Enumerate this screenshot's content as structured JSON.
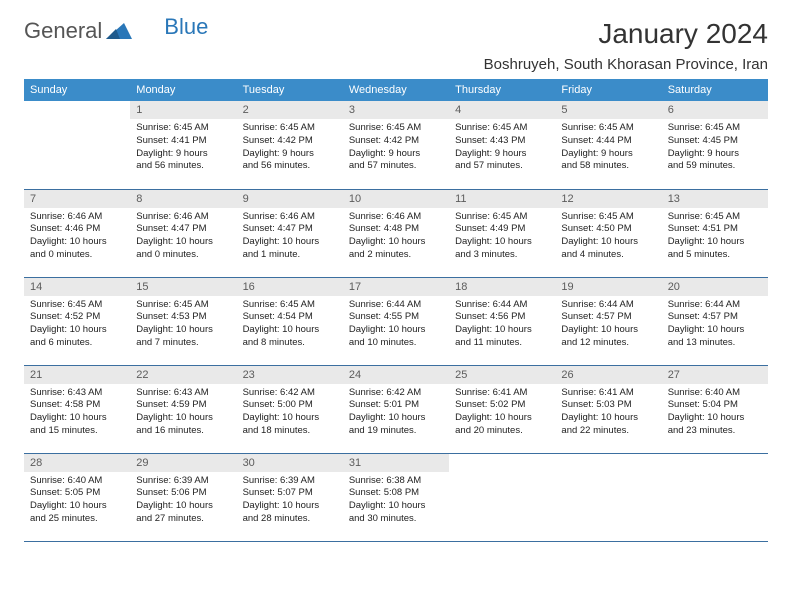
{
  "brand": {
    "name_part1": "General",
    "name_part2": "Blue"
  },
  "title": "January 2024",
  "location": "Boshruyeh, South Khorasan Province, Iran",
  "colors": {
    "header_bg": "#3b8cc9",
    "row_border": "#3b6fa0",
    "daynum_bg": "#e9e9e9",
    "logo_blue": "#2a77b8"
  },
  "weekdays": [
    "Sunday",
    "Monday",
    "Tuesday",
    "Wednesday",
    "Thursday",
    "Friday",
    "Saturday"
  ],
  "weeks": [
    [
      null,
      {
        "n": "1",
        "sr": "Sunrise: 6:45 AM",
        "ss": "Sunset: 4:41 PM",
        "d1": "Daylight: 9 hours",
        "d2": "and 56 minutes."
      },
      {
        "n": "2",
        "sr": "Sunrise: 6:45 AM",
        "ss": "Sunset: 4:42 PM",
        "d1": "Daylight: 9 hours",
        "d2": "and 56 minutes."
      },
      {
        "n": "3",
        "sr": "Sunrise: 6:45 AM",
        "ss": "Sunset: 4:42 PM",
        "d1": "Daylight: 9 hours",
        "d2": "and 57 minutes."
      },
      {
        "n": "4",
        "sr": "Sunrise: 6:45 AM",
        "ss": "Sunset: 4:43 PM",
        "d1": "Daylight: 9 hours",
        "d2": "and 57 minutes."
      },
      {
        "n": "5",
        "sr": "Sunrise: 6:45 AM",
        "ss": "Sunset: 4:44 PM",
        "d1": "Daylight: 9 hours",
        "d2": "and 58 minutes."
      },
      {
        "n": "6",
        "sr": "Sunrise: 6:45 AM",
        "ss": "Sunset: 4:45 PM",
        "d1": "Daylight: 9 hours",
        "d2": "and 59 minutes."
      }
    ],
    [
      {
        "n": "7",
        "sr": "Sunrise: 6:46 AM",
        "ss": "Sunset: 4:46 PM",
        "d1": "Daylight: 10 hours",
        "d2": "and 0 minutes."
      },
      {
        "n": "8",
        "sr": "Sunrise: 6:46 AM",
        "ss": "Sunset: 4:47 PM",
        "d1": "Daylight: 10 hours",
        "d2": "and 0 minutes."
      },
      {
        "n": "9",
        "sr": "Sunrise: 6:46 AM",
        "ss": "Sunset: 4:47 PM",
        "d1": "Daylight: 10 hours",
        "d2": "and 1 minute."
      },
      {
        "n": "10",
        "sr": "Sunrise: 6:46 AM",
        "ss": "Sunset: 4:48 PM",
        "d1": "Daylight: 10 hours",
        "d2": "and 2 minutes."
      },
      {
        "n": "11",
        "sr": "Sunrise: 6:45 AM",
        "ss": "Sunset: 4:49 PM",
        "d1": "Daylight: 10 hours",
        "d2": "and 3 minutes."
      },
      {
        "n": "12",
        "sr": "Sunrise: 6:45 AM",
        "ss": "Sunset: 4:50 PM",
        "d1": "Daylight: 10 hours",
        "d2": "and 4 minutes."
      },
      {
        "n": "13",
        "sr": "Sunrise: 6:45 AM",
        "ss": "Sunset: 4:51 PM",
        "d1": "Daylight: 10 hours",
        "d2": "and 5 minutes."
      }
    ],
    [
      {
        "n": "14",
        "sr": "Sunrise: 6:45 AM",
        "ss": "Sunset: 4:52 PM",
        "d1": "Daylight: 10 hours",
        "d2": "and 6 minutes."
      },
      {
        "n": "15",
        "sr": "Sunrise: 6:45 AM",
        "ss": "Sunset: 4:53 PM",
        "d1": "Daylight: 10 hours",
        "d2": "and 7 minutes."
      },
      {
        "n": "16",
        "sr": "Sunrise: 6:45 AM",
        "ss": "Sunset: 4:54 PM",
        "d1": "Daylight: 10 hours",
        "d2": "and 8 minutes."
      },
      {
        "n": "17",
        "sr": "Sunrise: 6:44 AM",
        "ss": "Sunset: 4:55 PM",
        "d1": "Daylight: 10 hours",
        "d2": "and 10 minutes."
      },
      {
        "n": "18",
        "sr": "Sunrise: 6:44 AM",
        "ss": "Sunset: 4:56 PM",
        "d1": "Daylight: 10 hours",
        "d2": "and 11 minutes."
      },
      {
        "n": "19",
        "sr": "Sunrise: 6:44 AM",
        "ss": "Sunset: 4:57 PM",
        "d1": "Daylight: 10 hours",
        "d2": "and 12 minutes."
      },
      {
        "n": "20",
        "sr": "Sunrise: 6:44 AM",
        "ss": "Sunset: 4:57 PM",
        "d1": "Daylight: 10 hours",
        "d2": "and 13 minutes."
      }
    ],
    [
      {
        "n": "21",
        "sr": "Sunrise: 6:43 AM",
        "ss": "Sunset: 4:58 PM",
        "d1": "Daylight: 10 hours",
        "d2": "and 15 minutes."
      },
      {
        "n": "22",
        "sr": "Sunrise: 6:43 AM",
        "ss": "Sunset: 4:59 PM",
        "d1": "Daylight: 10 hours",
        "d2": "and 16 minutes."
      },
      {
        "n": "23",
        "sr": "Sunrise: 6:42 AM",
        "ss": "Sunset: 5:00 PM",
        "d1": "Daylight: 10 hours",
        "d2": "and 18 minutes."
      },
      {
        "n": "24",
        "sr": "Sunrise: 6:42 AM",
        "ss": "Sunset: 5:01 PM",
        "d1": "Daylight: 10 hours",
        "d2": "and 19 minutes."
      },
      {
        "n": "25",
        "sr": "Sunrise: 6:41 AM",
        "ss": "Sunset: 5:02 PM",
        "d1": "Daylight: 10 hours",
        "d2": "and 20 minutes."
      },
      {
        "n": "26",
        "sr": "Sunrise: 6:41 AM",
        "ss": "Sunset: 5:03 PM",
        "d1": "Daylight: 10 hours",
        "d2": "and 22 minutes."
      },
      {
        "n": "27",
        "sr": "Sunrise: 6:40 AM",
        "ss": "Sunset: 5:04 PM",
        "d1": "Daylight: 10 hours",
        "d2": "and 23 minutes."
      }
    ],
    [
      {
        "n": "28",
        "sr": "Sunrise: 6:40 AM",
        "ss": "Sunset: 5:05 PM",
        "d1": "Daylight: 10 hours",
        "d2": "and 25 minutes."
      },
      {
        "n": "29",
        "sr": "Sunrise: 6:39 AM",
        "ss": "Sunset: 5:06 PM",
        "d1": "Daylight: 10 hours",
        "d2": "and 27 minutes."
      },
      {
        "n": "30",
        "sr": "Sunrise: 6:39 AM",
        "ss": "Sunset: 5:07 PM",
        "d1": "Daylight: 10 hours",
        "d2": "and 28 minutes."
      },
      {
        "n": "31",
        "sr": "Sunrise: 6:38 AM",
        "ss": "Sunset: 5:08 PM",
        "d1": "Daylight: 10 hours",
        "d2": "and 30 minutes."
      },
      null,
      null,
      null
    ]
  ]
}
